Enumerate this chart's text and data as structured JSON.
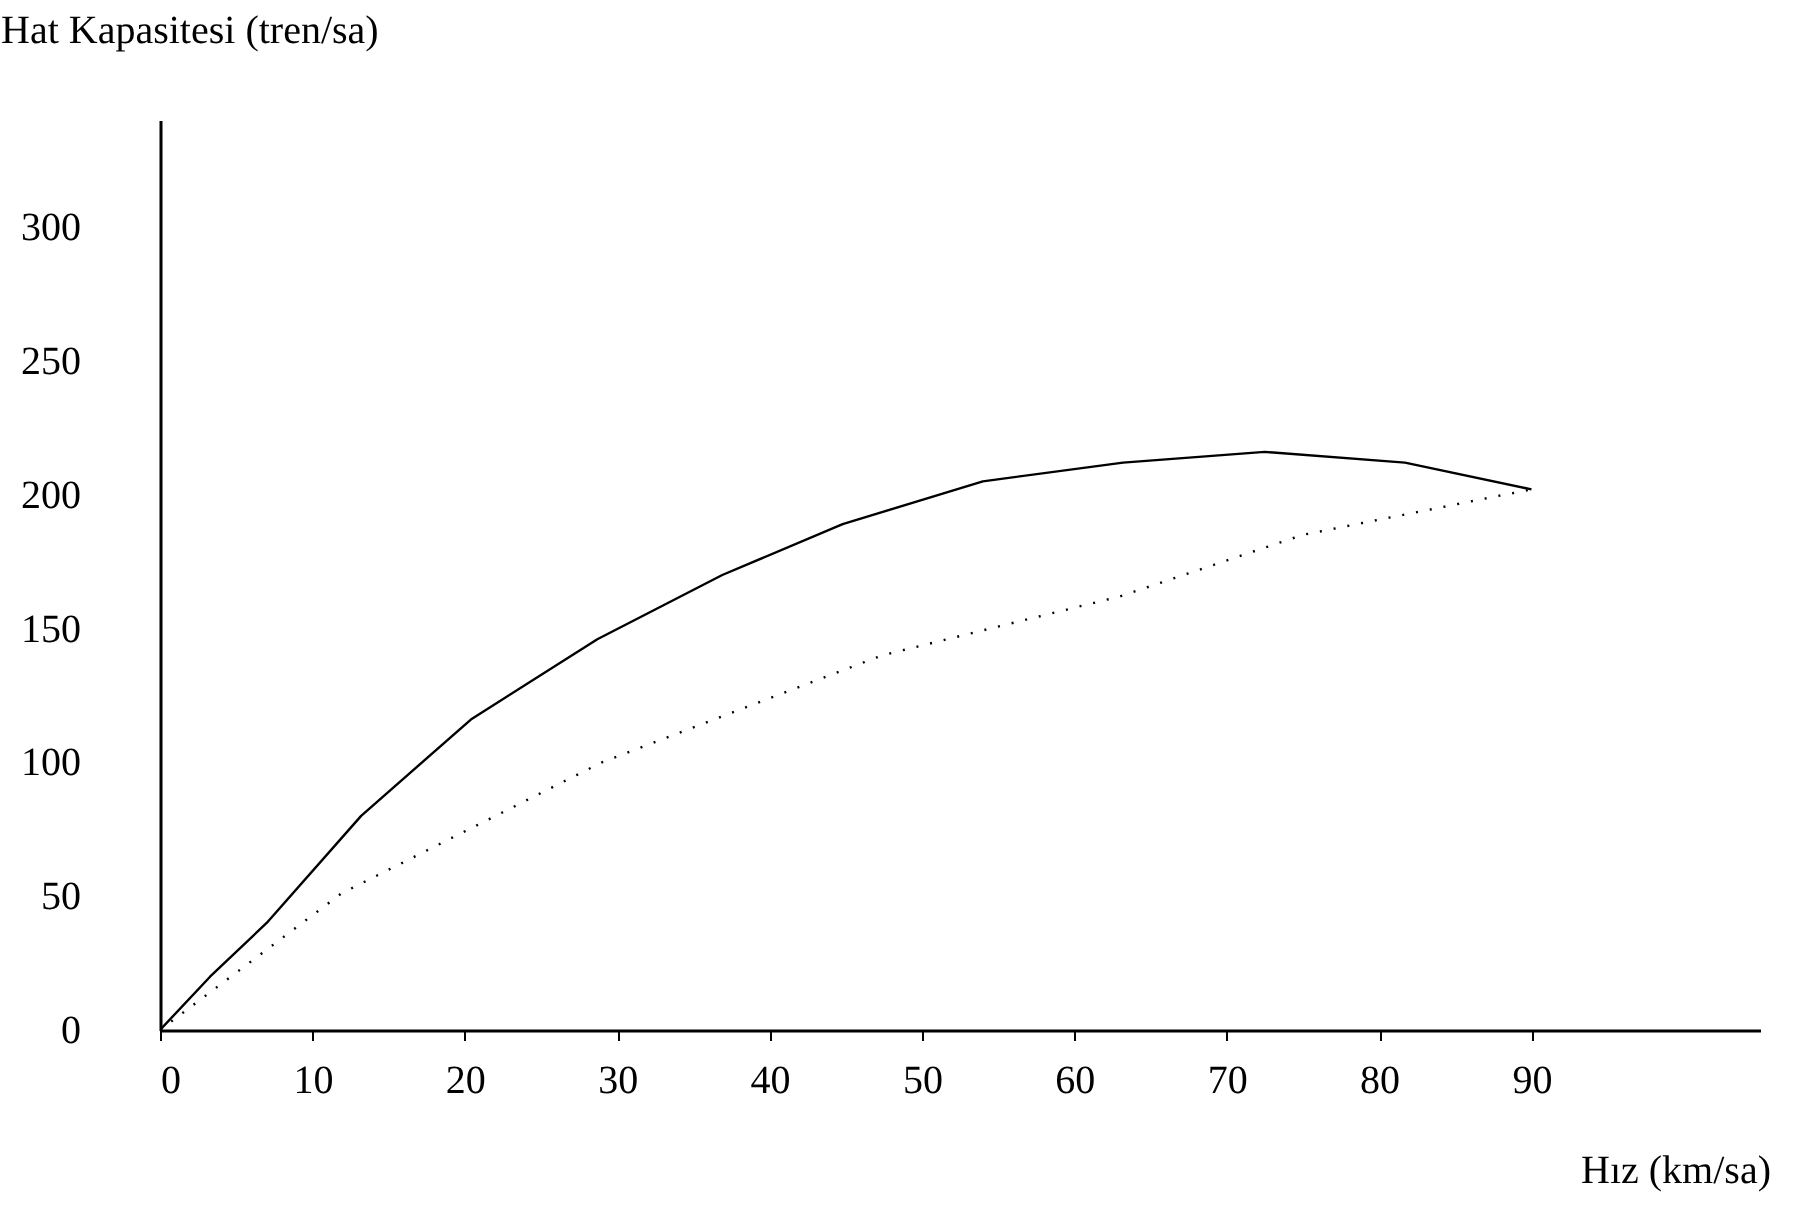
{
  "chart_data": {
    "type": "line",
    "xlabel": "Hız (km/sa)",
    "ylabel": "Hat Kapasitesi (tren/sa)",
    "series": [
      {
        "color": "#000000",
        "line_style": "solid",
        "x": [
          0,
          3.3,
          7,
          13.2,
          20.4,
          28.7,
          36.9,
          44.8,
          54,
          63.2,
          72.5,
          81.7,
          90
        ],
        "values": [
          0,
          20,
          40,
          80,
          116,
          146,
          170,
          189,
          205,
          212,
          216,
          212,
          202
        ]
      },
      {
        "color": "#000000",
        "line_style": "dotted",
        "x": [
          0,
          11.9,
          29,
          47.4,
          63,
          75,
          90
        ],
        "values": [
          0,
          51,
          100,
          140,
          162,
          185,
          202
        ]
      }
    ],
    "xlim": [
      0,
      105
    ],
    "ylim": [
      0,
      340
    ],
    "xticks": [
      0,
      10,
      20,
      30,
      40,
      50,
      60,
      70,
      80,
      90
    ],
    "yticks": [
      0,
      50,
      100,
      150,
      200,
      250,
      300
    ],
    "grid": false
  }
}
